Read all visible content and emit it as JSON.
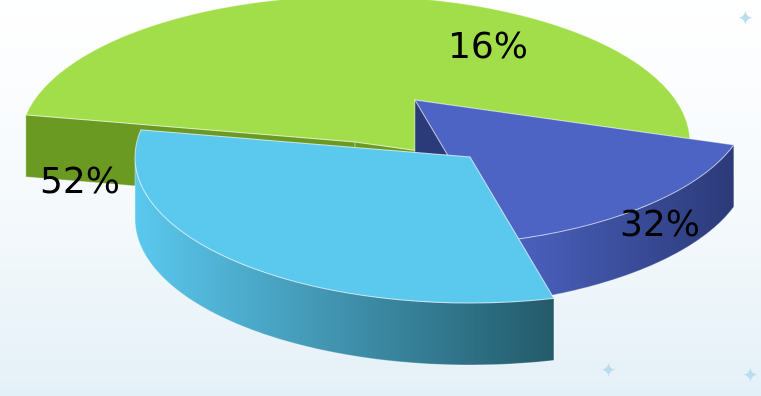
{
  "chart_data": {
    "type": "pie",
    "style": "3d-exploded",
    "slices": [
      {
        "label": "52%",
        "value": 52,
        "top_color": "#a2de4a",
        "side_color": "#6a9a22"
      },
      {
        "label": "16%",
        "value": 16,
        "top_color": "#4d64c4",
        "side_color": "#2b3a78"
      },
      {
        "label": "32%",
        "value": 32,
        "top_color": "#5bc8ee",
        "side_color": "#235a6a"
      }
    ]
  },
  "decorations": {
    "sparkle_icon": "sparkle-icon",
    "background_color": "#eef6fb"
  }
}
